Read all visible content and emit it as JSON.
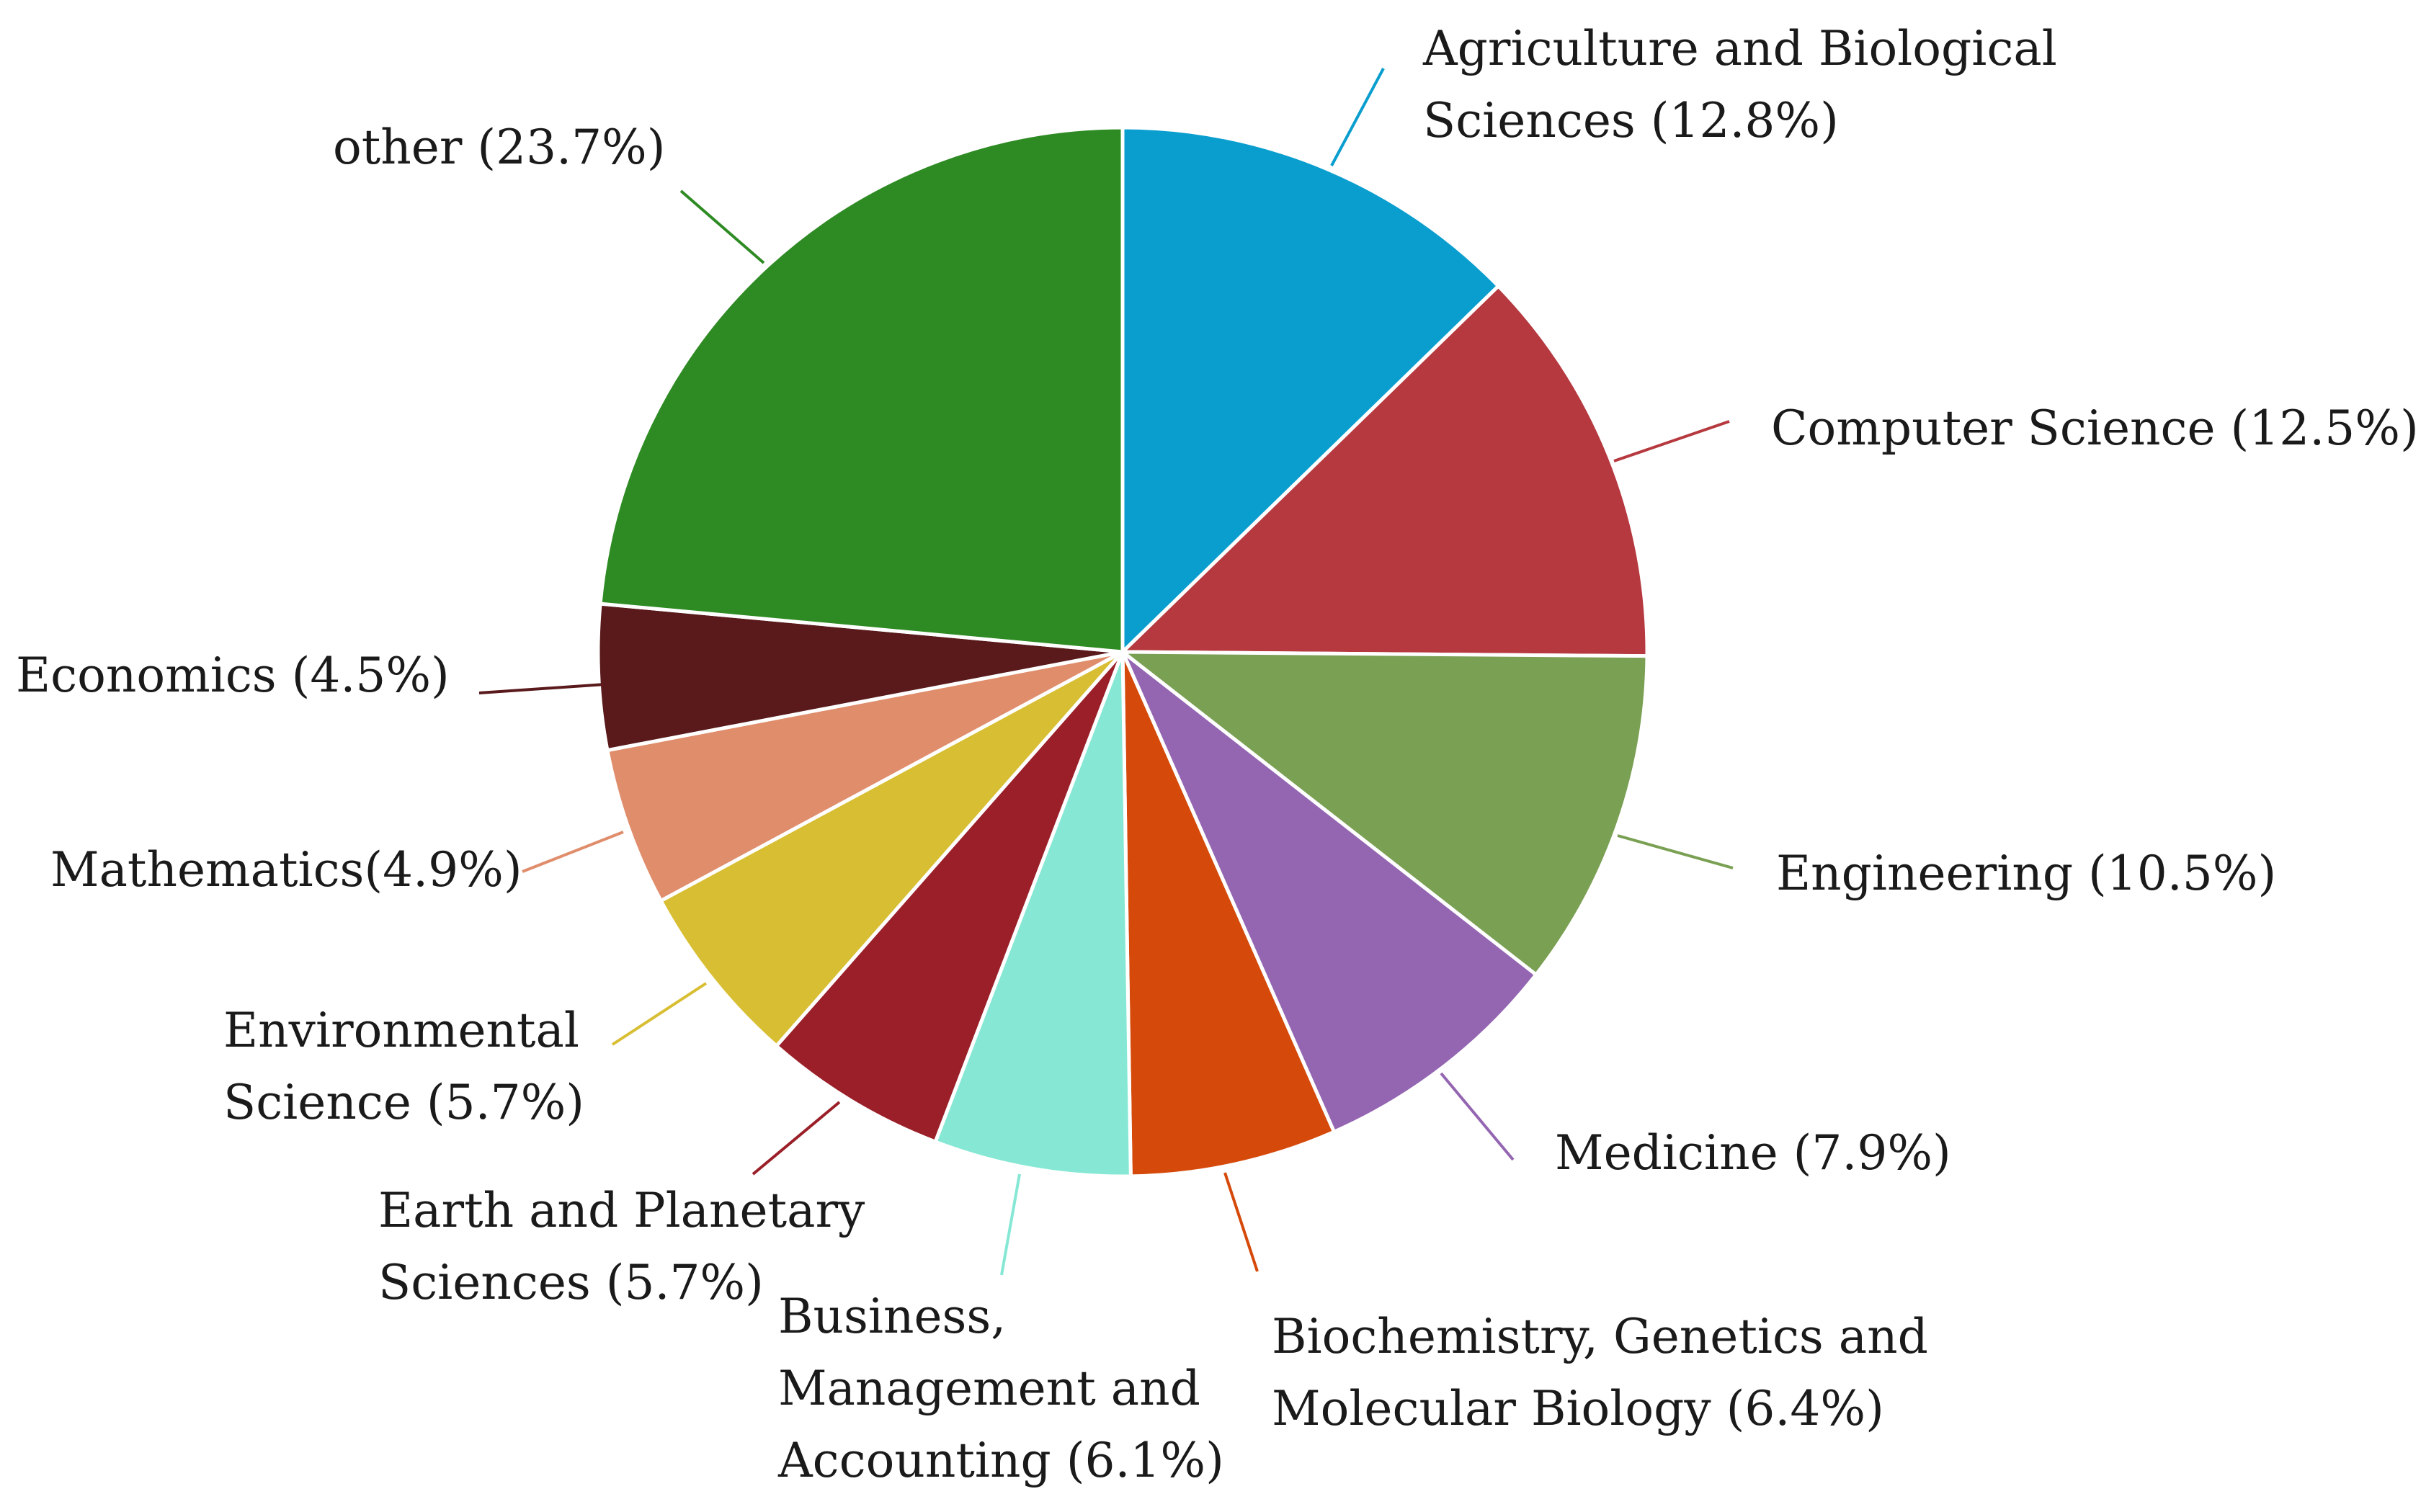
{
  "chart_data": {
    "type": "pie",
    "title": "",
    "slices": [
      {
        "label_lines": [
          "Agriculture and Biological",
          "Sciences (12.8%)"
        ],
        "value": 12.8,
        "color": "#0a9ecf"
      },
      {
        "label_lines": [
          "Computer Science (12.5%)"
        ],
        "value": 12.5,
        "color": "#b5393f"
      },
      {
        "label_lines": [
          "Engineering (10.5%)"
        ],
        "value": 10.5,
        "color": "#7aa053"
      },
      {
        "label_lines": [
          "Medicine (7.9%)"
        ],
        "value": 7.9,
        "color": "#9466b2"
      },
      {
        "label_lines": [
          "Biochemistry, Genetics and",
          "Molecular Biology (6.4%)"
        ],
        "value": 6.4,
        "color": "#d54a0a"
      },
      {
        "label_lines": [
          "Business,",
          "Management and",
          "Accounting (6.1%)"
        ],
        "value": 6.1,
        "color": "#86e8d4"
      },
      {
        "label_lines": [
          "Earth and Planetary",
          "Sciences (5.7%)"
        ],
        "value": 5.7,
        "color": "#9a1f28"
      },
      {
        "label_lines": [
          "Environmental",
          "Science (5.7%)"
        ],
        "value": 5.7,
        "color": "#d8be33"
      },
      {
        "label_lines": [
          "Mathematics(4.9%)"
        ],
        "value": 4.9,
        "color": "#e08d6c"
      },
      {
        "label_lines": [
          "Economics (4.5%)"
        ],
        "value": 4.5,
        "color": "#5a1a1c"
      },
      {
        "label_lines": [
          "other (23.7%)"
        ],
        "value": 23.7,
        "color": "#2e8b23"
      }
    ]
  }
}
